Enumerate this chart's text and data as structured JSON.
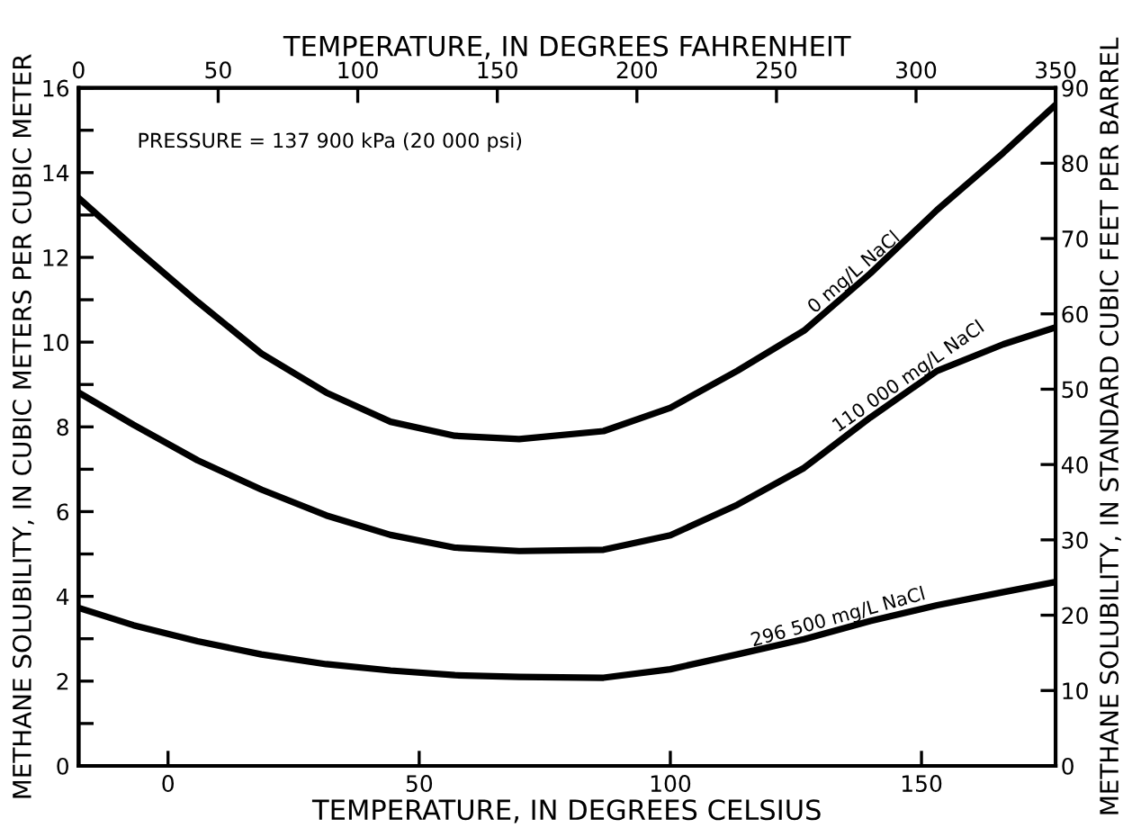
{
  "chart_data": {
    "type": "line",
    "xlabel": "TEMPERATURE, IN DEGREES CELSIUS",
    "x2label": "TEMPERATURE, IN DEGREES FAHRENHEIT",
    "ylabel": "METHANE SOLUBILITY, IN CUBIC METERS PER CUBIC METER",
    "y2label": "METHANE SOLUBILITY, IN STANDARD CUBIC FEET PER BARREL",
    "x": [
      -17.8,
      -6.9,
      5.9,
      18.6,
      31.5,
      44.3,
      57.1,
      69.9,
      86.7,
      100,
      113.3,
      126.6,
      139.8,
      153.1,
      166.3,
      176.7
    ],
    "series": [
      {
        "name": "0 mg/L NaCl",
        "color": "#000000",
        "values": [
          13.4,
          12.25,
          10.95,
          9.73,
          8.81,
          8.12,
          7.79,
          7.71,
          7.9,
          8.45,
          9.32,
          10.27,
          11.62,
          13.12,
          14.47,
          15.6
        ]
      },
      {
        "name": "110 000 mg/L NaCl",
        "color": "#000000",
        "values": [
          8.81,
          8.05,
          7.21,
          6.52,
          5.91,
          5.45,
          5.15,
          5.07,
          5.1,
          5.44,
          6.16,
          7.03,
          8.22,
          9.32,
          9.95,
          10.35
        ]
      },
      {
        "name": "296 500 mg/L NaCl",
        "color": "#000000",
        "values": [
          3.73,
          3.32,
          2.94,
          2.63,
          2.4,
          2.25,
          2.14,
          2.1,
          2.08,
          2.28,
          2.63,
          2.99,
          3.42,
          3.79,
          4.1,
          4.34
        ]
      }
    ],
    "xlim": [
      -17.8,
      176.7
    ],
    "xticks": [
      0,
      50,
      100,
      150
    ],
    "x2lim": [
      0,
      350
    ],
    "x2ticks": [
      0,
      50,
      100,
      150,
      200,
      250,
      300,
      350
    ],
    "ylim": [
      0,
      16
    ],
    "yticks": [
      0,
      {
        "value": 1,
        "label": null
      },
      2,
      {
        "value": 3,
        "label": null
      },
      4,
      {
        "value": 5,
        "label": null
      },
      6,
      {
        "value": 7,
        "label": null
      },
      8,
      {
        "value": 9,
        "label": null
      },
      10,
      {
        "value": 11,
        "label": null
      },
      12,
      {
        "value": 13,
        "label": null
      },
      14,
      {
        "value": 15,
        "label": null
      },
      16
    ],
    "y2lim": [
      0,
      90
    ],
    "y2ticks": [
      0,
      10,
      20,
      30,
      40,
      50,
      60,
      70,
      80,
      90
    ],
    "annotations": [
      "PRESSURE = 137 900 kPa (20 000 psi)"
    ],
    "grid": false,
    "legend": false,
    "marker": "none",
    "line_style": "solid"
  }
}
